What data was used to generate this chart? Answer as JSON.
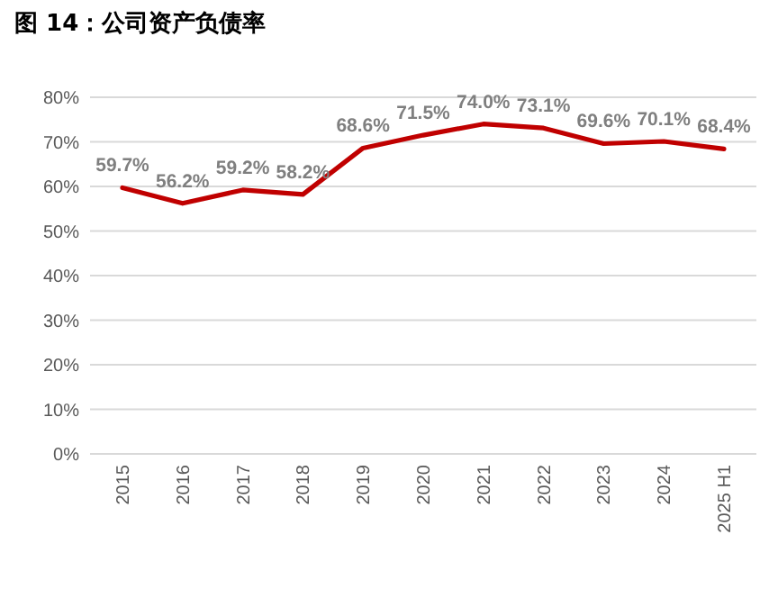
{
  "chart_data": {
    "type": "line",
    "title": "图 14：公司资产负债率",
    "categories": [
      "2015",
      "2016",
      "2017",
      "2018",
      "2019",
      "2020",
      "2021",
      "2022",
      "2023",
      "2024",
      "2025 H1"
    ],
    "series": [
      {
        "color": "#c00000",
        "values": [
          59.7,
          56.2,
          59.2,
          58.2,
          68.6,
          71.5,
          74.0,
          73.1,
          69.6,
          70.1,
          68.4
        ],
        "value_labels": [
          "59.7%",
          "56.2%",
          "59.2%",
          "58.2%",
          "68.6%",
          "71.5%",
          "74.0%",
          "73.1%",
          "69.6%",
          "70.1%",
          "68.4%"
        ]
      }
    ],
    "ylim": [
      0,
      80
    ],
    "yticks": [
      {
        "value": 0,
        "label": "0%"
      },
      {
        "value": 10,
        "label": "10%"
      },
      {
        "value": 20,
        "label": "20%"
      },
      {
        "value": 30,
        "label": "30%"
      },
      {
        "value": 40,
        "label": "40%"
      },
      {
        "value": 50,
        "label": "50%"
      },
      {
        "value": 60,
        "label": "60%"
      },
      {
        "value": 70,
        "label": "70%"
      },
      {
        "value": 80,
        "label": "80%"
      }
    ],
    "grid": "y",
    "marker": "none",
    "line_style": "solid"
  }
}
